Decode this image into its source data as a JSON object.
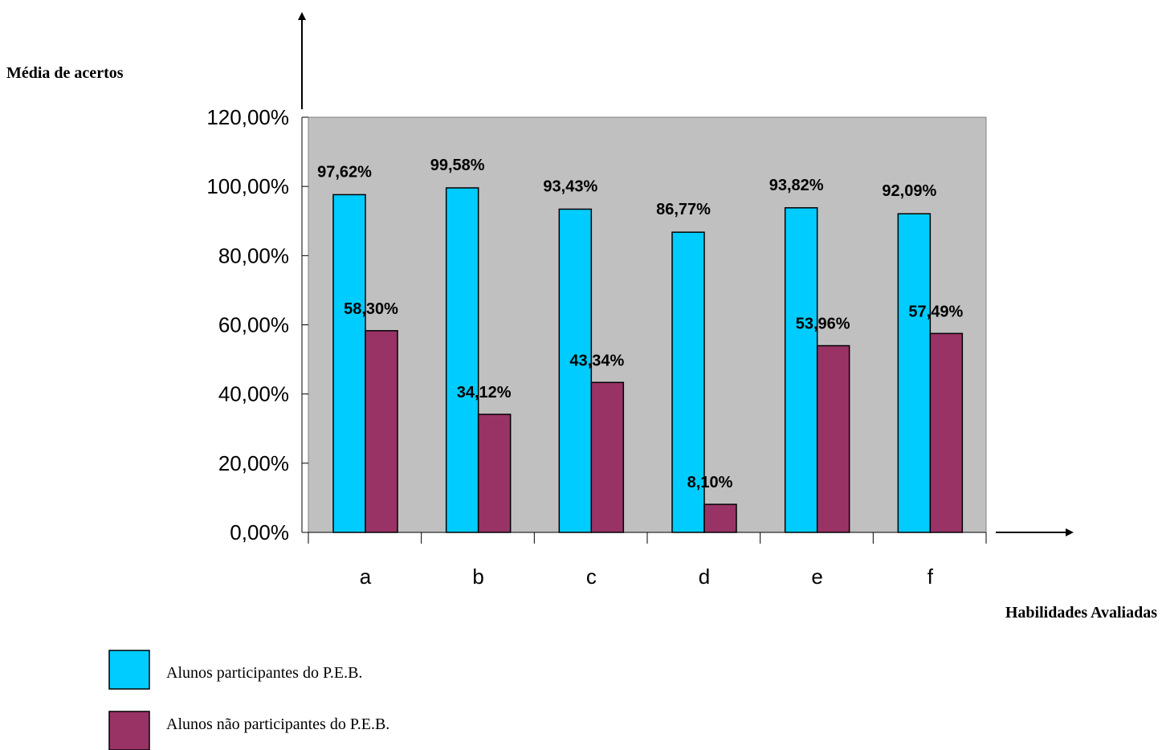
{
  "chart_data": {
    "type": "bar",
    "ylabel": "Média de acertos",
    "xlabel": "Habilidades Avaliadas",
    "categories": [
      "a",
      "b",
      "c",
      "d",
      "e",
      "f"
    ],
    "ylim": [
      0,
      120
    ],
    "yticks": [
      0,
      20,
      40,
      60,
      80,
      100,
      120
    ],
    "ytick_labels": [
      "0,00%",
      "20,00%",
      "40,00%",
      "60,00%",
      "80,00%",
      "100,00%",
      "120,00%"
    ],
    "grid": false,
    "plot_background": "#C0C0C0",
    "legend_position": "bottom-left",
    "series": [
      {
        "name": "Alunos participantes do P.E.B.",
        "color": "#00CCFF",
        "values": [
          97.62,
          99.58,
          93.43,
          86.77,
          93.82,
          92.09
        ],
        "labels": [
          "97,62%",
          "99,58%",
          "93,43%",
          "86,77%",
          "93,82%",
          "92,09%"
        ]
      },
      {
        "name": "Alunos não participantes do P.E.B.",
        "color": "#993366",
        "values": [
          58.3,
          34.12,
          43.34,
          8.1,
          53.96,
          57.49
        ],
        "labels": [
          "58,30%",
          "34,12%",
          "43,34%",
          "8,10%",
          "53,96%",
          "57,49%"
        ]
      }
    ]
  }
}
